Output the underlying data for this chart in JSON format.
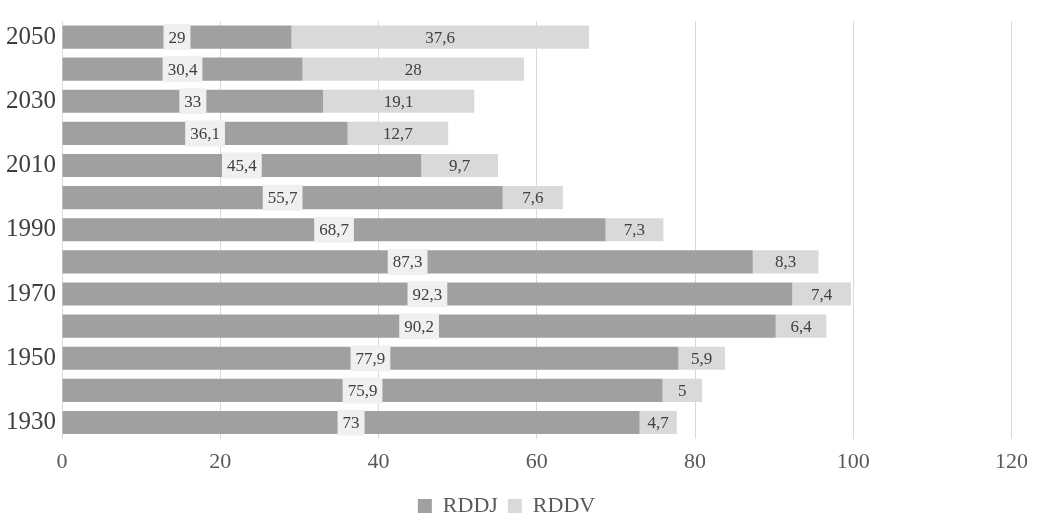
{
  "chart_data": {
    "type": "bar",
    "orientation": "horizontal",
    "stacked": true,
    "categories": [
      "2050",
      null,
      "2030",
      null,
      "2010",
      null,
      "1990",
      null,
      "1970",
      null,
      "1950",
      null,
      "1930"
    ],
    "series": [
      {
        "name": "RDDJ",
        "color": "#a0a0a0",
        "values": [
          29,
          30.4,
          33,
          36.1,
          45.4,
          55.7,
          68.7,
          87.3,
          92.3,
          90.2,
          77.9,
          75.9,
          73
        ],
        "value_labels": [
          "29",
          "30,4",
          "33",
          "36,1",
          "45,4",
          "55,7",
          "68,7",
          "87,3",
          "92,3",
          "90,2",
          "77,9",
          "75,9",
          "73"
        ]
      },
      {
        "name": "RDDV",
        "color": "#d9d9d9",
        "values": [
          37.6,
          28,
          19.1,
          12.7,
          9.7,
          7.6,
          7.3,
          8.3,
          7.4,
          6.4,
          5.9,
          5,
          4.7
        ],
        "value_labels": [
          "37,6",
          "28",
          "19,1",
          "12,7",
          "9,7",
          "7,6",
          "7,3",
          "8,3",
          "7,4",
          "6,4",
          "5,9",
          "5",
          "4,7"
        ]
      }
    ],
    "xlim": [
      0,
      120
    ],
    "xticks": [
      0,
      20,
      40,
      60,
      80,
      100,
      120
    ],
    "grid": "x",
    "legend": "bottom"
  }
}
